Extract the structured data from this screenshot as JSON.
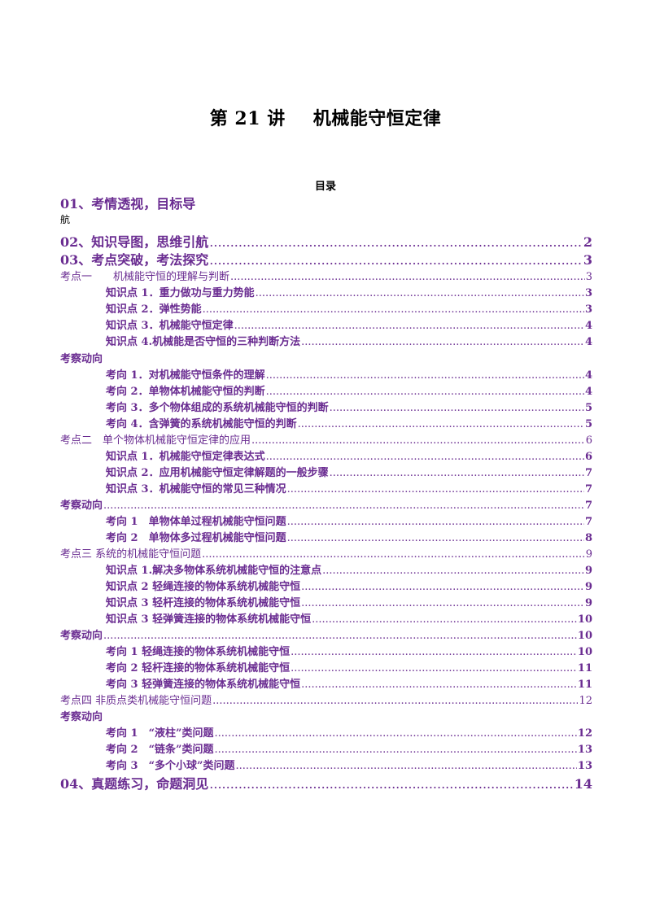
{
  "title": {
    "part1": "第 21 讲",
    "part2": "机械能守恒定律"
  },
  "toc_heading": "目录",
  "toc": [
    {
      "text": "01、考情透视，目标导",
      "page": "",
      "wrap": "航"
    },
    {
      "text": "02、知识导图，思维引航",
      "page": "2"
    },
    {
      "text": "03、考点突破，考法探究",
      "page": "3"
    },
    {
      "text": "考点一　　机械能守恒的理解与判断",
      "page": "3"
    },
    {
      "text": "知识点 1．重力做功与重力势能",
      "page": "3"
    },
    {
      "text": "知识点 2．弹性势能",
      "page": "3"
    },
    {
      "text": "知识点 3．机械能守恒定律",
      "page": "4"
    },
    {
      "text": "知识点 4.机械能是否守恒的三种判断方法",
      "page": "4"
    },
    {
      "text": "考察动向",
      "page": ""
    },
    {
      "text": "考向 1．对机械能守恒条件的理解",
      "page": "4"
    },
    {
      "text": "考向 2．单物体机械能守恒的判断",
      "page": "4"
    },
    {
      "text": "考向 3．多个物体组成的系统机械能守恒的判断",
      "page": "5"
    },
    {
      "text": "考向 4．含弹簧的系统机械能守恒的判断",
      "page": "5"
    },
    {
      "text": "考点二　单个物体机械能守恒定律的应用",
      "page": "6"
    },
    {
      "text": "知识点 1．机械能守恒定律表达式",
      "page": "6"
    },
    {
      "text": "知识点 2．应用机械能守恒定律解题的一般步骤",
      "page": "7"
    },
    {
      "text": "知识点 3．机械能守恒的常见三种情况",
      "page": "7"
    },
    {
      "text": "考察动向",
      "page": "7"
    },
    {
      "text": "考向 1　单物体单过程机械能守恒问题",
      "page": "7"
    },
    {
      "text": "考向 2　单物体多过程机械能守恒问题",
      "page": "8"
    },
    {
      "text": "考点三 系统的机械能守恒问题",
      "page": "9"
    },
    {
      "text": "知识点 1.解决多物体系统机械能守恒的注意点",
      "page": "9"
    },
    {
      "text": "知识点 2 轻绳连接的物体系统机械能守恒",
      "page": "9"
    },
    {
      "text": "知识点 3 轻杆连接的物体系统机械能守恒",
      "page": "9"
    },
    {
      "text": "知识点 3 轻弹簧连接的物体系统机械能守恒",
      "page": "10"
    },
    {
      "text": "考察动向",
      "page": "10"
    },
    {
      "text": "考向 1 轻绳连接的物体系统机械能守恒",
      "page": "10"
    },
    {
      "text": "考向 2 轻杆连接的物体系统机械能守恒",
      "page": "11"
    },
    {
      "text": "考向 3 轻弹簧连接的物体系统机械能守恒",
      "page": "11"
    },
    {
      "text": "考点四 非质点类机械能守恒问题",
      "page": "12"
    },
    {
      "text": "考察动向",
      "page": ""
    },
    {
      "text": "考向 1　“液柱”类问题",
      "page": "12"
    },
    {
      "text": "考向 2　“链条”类问题",
      "page": "13"
    },
    {
      "text": "考向 3　“多个小球”类问题",
      "page": "13"
    },
    {
      "text": "04、真题练习，命题洞见",
      "page": "14"
    }
  ]
}
